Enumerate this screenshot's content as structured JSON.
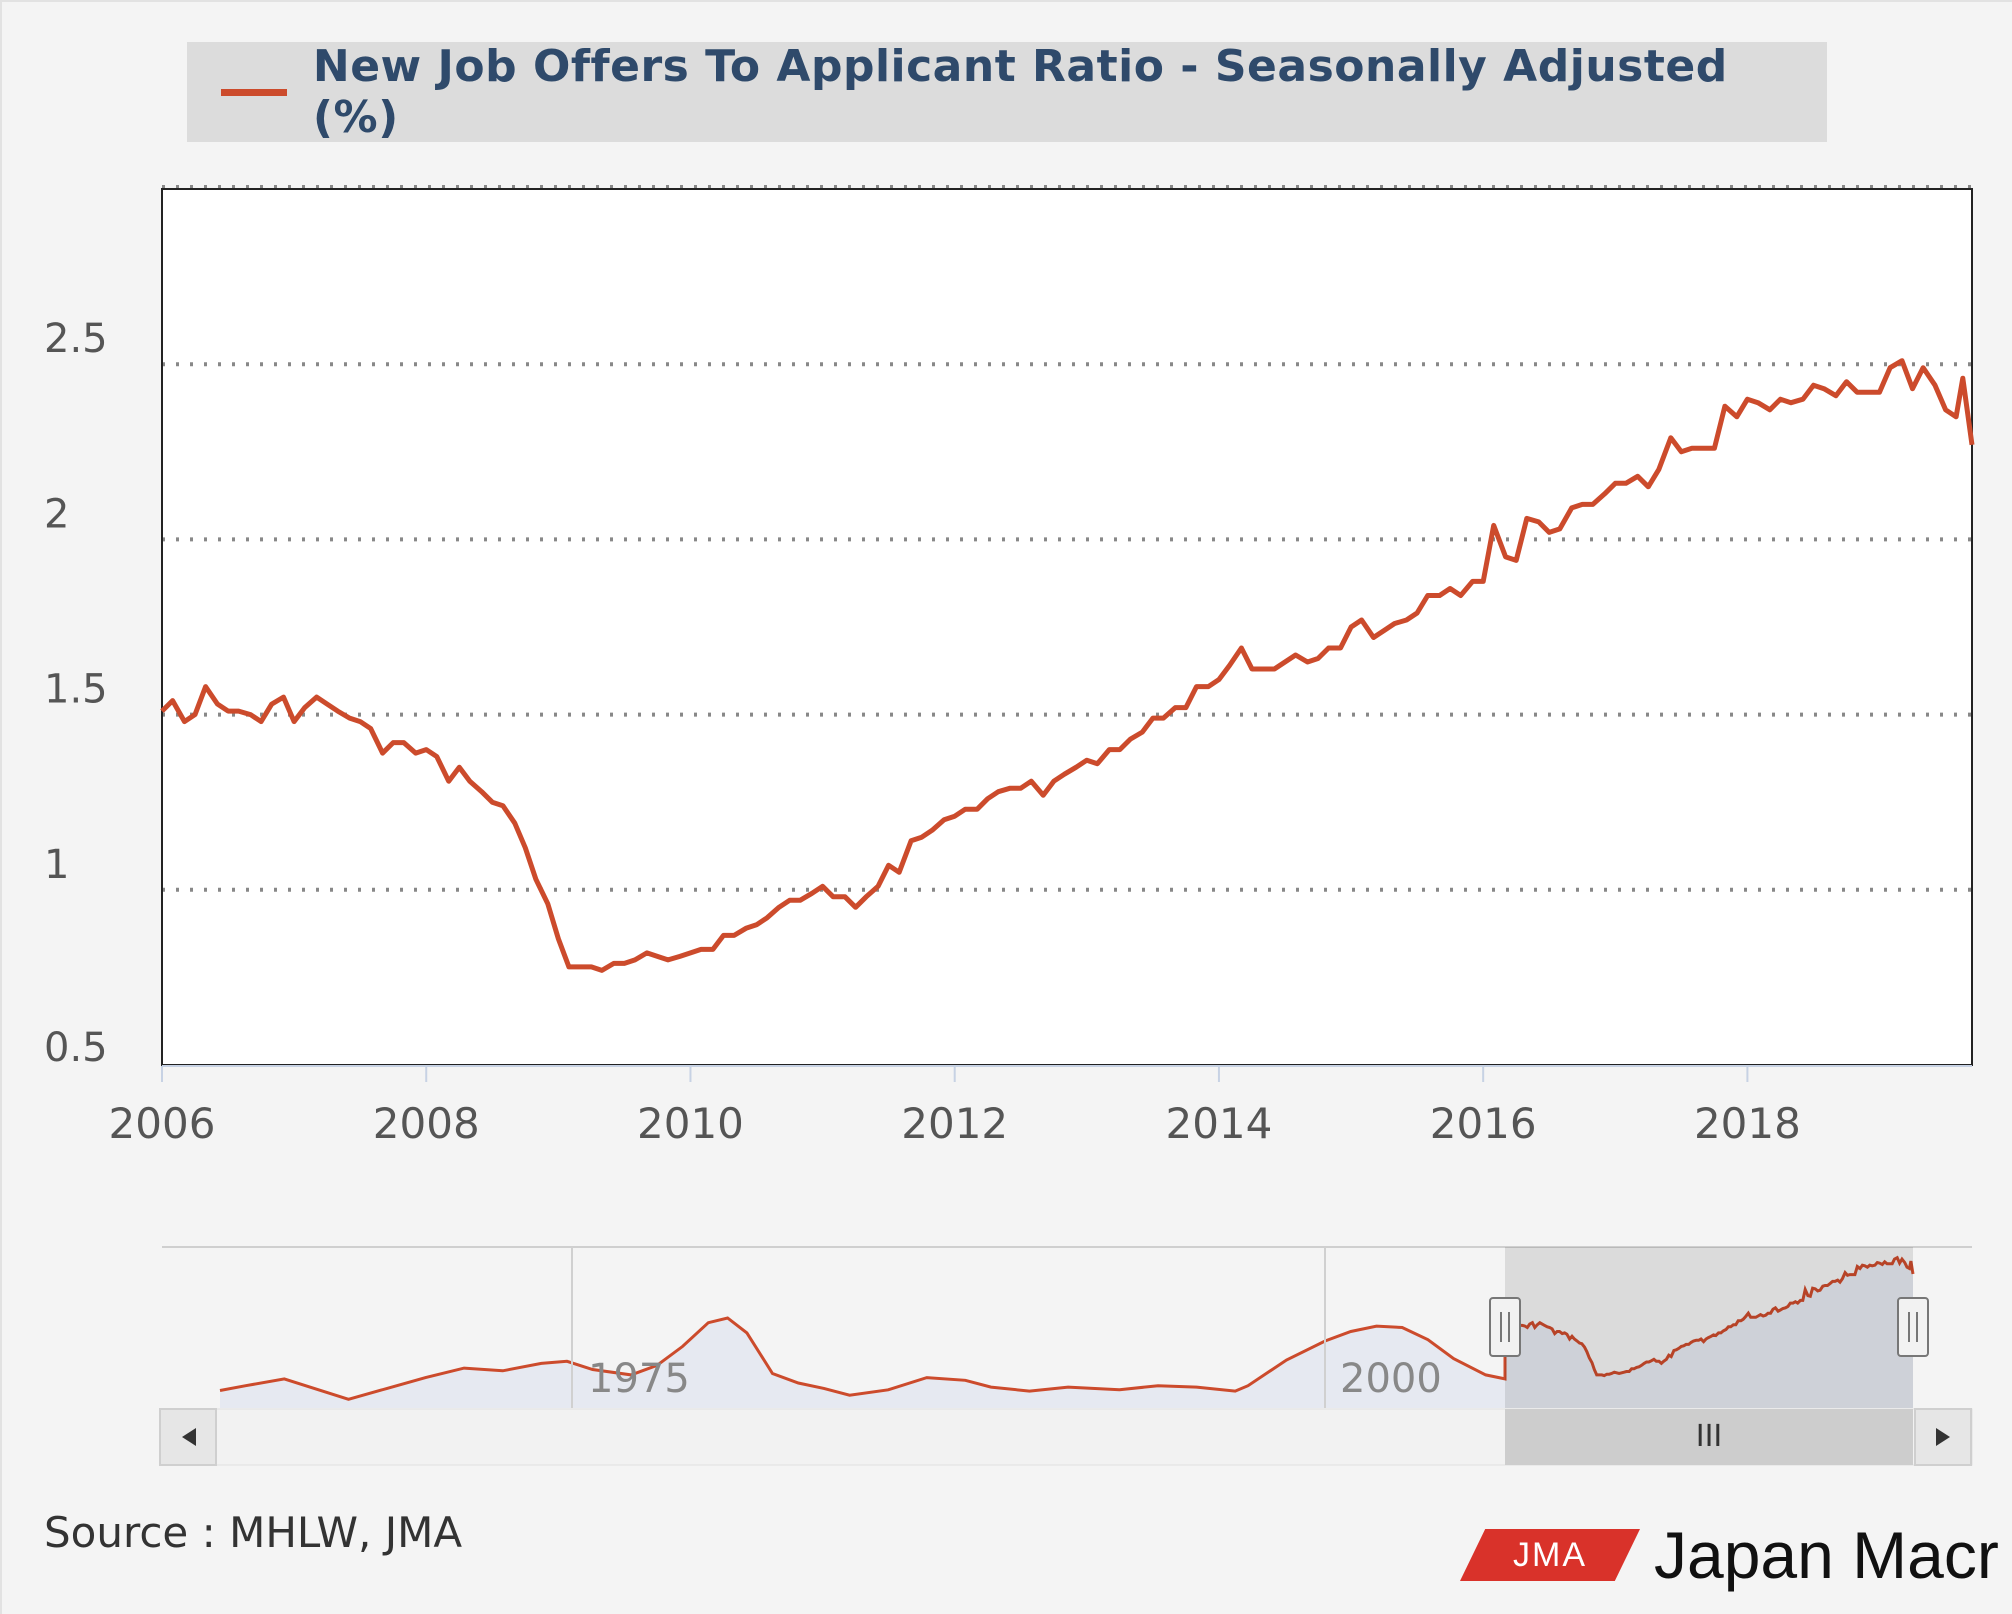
{
  "legend": {
    "label": "New Job Offers To Applicant Ratio - Seasonally Adjusted (%)",
    "color": "#cc4b2c"
  },
  "source": "Source : MHLW, JMA",
  "logo": {
    "badge": "JMA",
    "brand": "Japan Macr"
  },
  "navigator": {
    "labels": [
      "1975",
      "2000"
    ],
    "scroll_grip": "III"
  },
  "chart_data": {
    "type": "line",
    "title": "",
    "xlabel": "",
    "ylabel": "",
    "x_ticks": [
      "2006",
      "2008",
      "2010",
      "2012",
      "2014",
      "2016",
      "2018"
    ],
    "y_ticks": [
      "0.5",
      "1",
      "1.5",
      "2",
      "2.5"
    ],
    "xlim": [
      2006.0,
      2019.7
    ],
    "ylim": [
      0.5,
      3.0
    ],
    "grid": "horizontal dotted",
    "legend_position": "top",
    "series": [
      {
        "name": "New Job Offers To Applicant Ratio - Seasonally Adjusted (%)",
        "color": "#cc4b2c",
        "points": [
          [
            2006.0,
            1.51
          ],
          [
            2006.08,
            1.54
          ],
          [
            2006.17,
            1.48
          ],
          [
            2006.25,
            1.5
          ],
          [
            2006.33,
            1.58
          ],
          [
            2006.42,
            1.53
          ],
          [
            2006.5,
            1.51
          ],
          [
            2006.58,
            1.51
          ],
          [
            2006.67,
            1.5
          ],
          [
            2006.75,
            1.48
          ],
          [
            2006.83,
            1.53
          ],
          [
            2006.92,
            1.55
          ],
          [
            2007.0,
            1.48
          ],
          [
            2007.08,
            1.52
          ],
          [
            2007.17,
            1.55
          ],
          [
            2007.25,
            1.53
          ],
          [
            2007.33,
            1.51
          ],
          [
            2007.42,
            1.49
          ],
          [
            2007.5,
            1.48
          ],
          [
            2007.58,
            1.46
          ],
          [
            2007.67,
            1.39
          ],
          [
            2007.75,
            1.42
          ],
          [
            2007.83,
            1.42
          ],
          [
            2007.92,
            1.39
          ],
          [
            2008.0,
            1.4
          ],
          [
            2008.08,
            1.38
          ],
          [
            2008.17,
            1.31
          ],
          [
            2008.25,
            1.35
          ],
          [
            2008.33,
            1.31
          ],
          [
            2008.42,
            1.28
          ],
          [
            2008.5,
            1.25
          ],
          [
            2008.58,
            1.24
          ],
          [
            2008.67,
            1.19
          ],
          [
            2008.75,
            1.12
          ],
          [
            2008.83,
            1.03
          ],
          [
            2008.92,
            0.96
          ],
          [
            2009.0,
            0.86
          ],
          [
            2009.08,
            0.78
          ],
          [
            2009.17,
            0.78
          ],
          [
            2009.25,
            0.78
          ],
          [
            2009.33,
            0.77
          ],
          [
            2009.42,
            0.79
          ],
          [
            2009.5,
            0.79
          ],
          [
            2009.58,
            0.8
          ],
          [
            2009.67,
            0.82
          ],
          [
            2009.75,
            0.81
          ],
          [
            2009.83,
            0.8
          ],
          [
            2009.92,
            0.81
          ],
          [
            2010.0,
            0.82
          ],
          [
            2010.08,
            0.83
          ],
          [
            2010.17,
            0.83
          ],
          [
            2010.25,
            0.87
          ],
          [
            2010.33,
            0.87
          ],
          [
            2010.42,
            0.89
          ],
          [
            2010.5,
            0.9
          ],
          [
            2010.58,
            0.92
          ],
          [
            2010.67,
            0.95
          ],
          [
            2010.75,
            0.97
          ],
          [
            2010.83,
            0.97
          ],
          [
            2010.92,
            0.99
          ],
          [
            2011.0,
            1.01
          ],
          [
            2011.08,
            0.98
          ],
          [
            2011.17,
            0.98
          ],
          [
            2011.25,
            0.95
          ],
          [
            2011.33,
            0.98
          ],
          [
            2011.42,
            1.01
          ],
          [
            2011.5,
            1.07
          ],
          [
            2011.58,
            1.05
          ],
          [
            2011.67,
            1.14
          ],
          [
            2011.75,
            1.15
          ],
          [
            2011.83,
            1.17
          ],
          [
            2011.92,
            1.2
          ],
          [
            2012.0,
            1.21
          ],
          [
            2012.08,
            1.23
          ],
          [
            2012.17,
            1.23
          ],
          [
            2012.25,
            1.26
          ],
          [
            2012.33,
            1.28
          ],
          [
            2012.42,
            1.29
          ],
          [
            2012.5,
            1.29
          ],
          [
            2012.58,
            1.31
          ],
          [
            2012.67,
            1.27
          ],
          [
            2012.75,
            1.31
          ],
          [
            2012.83,
            1.33
          ],
          [
            2012.92,
            1.35
          ],
          [
            2013.0,
            1.37
          ],
          [
            2013.08,
            1.36
          ],
          [
            2013.17,
            1.4
          ],
          [
            2013.25,
            1.4
          ],
          [
            2013.33,
            1.43
          ],
          [
            2013.42,
            1.45
          ],
          [
            2013.5,
            1.49
          ],
          [
            2013.58,
            1.49
          ],
          [
            2013.67,
            1.52
          ],
          [
            2013.75,
            1.52
          ],
          [
            2013.83,
            1.58
          ],
          [
            2013.92,
            1.58
          ],
          [
            2014.0,
            1.6
          ],
          [
            2014.08,
            1.64
          ],
          [
            2014.17,
            1.69
          ],
          [
            2014.25,
            1.63
          ],
          [
            2014.33,
            1.63
          ],
          [
            2014.42,
            1.63
          ],
          [
            2014.5,
            1.65
          ],
          [
            2014.58,
            1.67
          ],
          [
            2014.67,
            1.65
          ],
          [
            2014.75,
            1.66
          ],
          [
            2014.83,
            1.69
          ],
          [
            2014.92,
            1.69
          ],
          [
            2015.0,
            1.75
          ],
          [
            2015.08,
            1.77
          ],
          [
            2015.17,
            1.72
          ],
          [
            2015.25,
            1.74
          ],
          [
            2015.33,
            1.76
          ],
          [
            2015.42,
            1.77
          ],
          [
            2015.5,
            1.79
          ],
          [
            2015.58,
            1.84
          ],
          [
            2015.67,
            1.84
          ],
          [
            2015.75,
            1.86
          ],
          [
            2015.83,
            1.84
          ],
          [
            2015.92,
            1.88
          ],
          [
            2016.0,
            1.88
          ],
          [
            2016.08,
            2.04
          ],
          [
            2016.17,
            1.95
          ],
          [
            2016.25,
            1.94
          ],
          [
            2016.33,
            2.06
          ],
          [
            2016.42,
            2.05
          ],
          [
            2016.5,
            2.02
          ],
          [
            2016.58,
            2.03
          ],
          [
            2016.67,
            2.09
          ],
          [
            2016.75,
            2.1
          ],
          [
            2016.83,
            2.1
          ],
          [
            2016.92,
            2.13
          ],
          [
            2017.0,
            2.16
          ],
          [
            2017.08,
            2.16
          ],
          [
            2017.17,
            2.18
          ],
          [
            2017.25,
            2.15
          ],
          [
            2017.33,
            2.2
          ],
          [
            2017.42,
            2.29
          ],
          [
            2017.5,
            2.25
          ],
          [
            2017.58,
            2.26
          ],
          [
            2017.67,
            2.26
          ],
          [
            2017.75,
            2.26
          ],
          [
            2017.83,
            2.38
          ],
          [
            2017.92,
            2.35
          ],
          [
            2018.0,
            2.4
          ],
          [
            2018.08,
            2.39
          ],
          [
            2018.17,
            2.37
          ],
          [
            2018.25,
            2.4
          ],
          [
            2018.33,
            2.39
          ],
          [
            2018.42,
            2.4
          ],
          [
            2018.5,
            2.44
          ],
          [
            2018.58,
            2.43
          ],
          [
            2018.67,
            2.41
          ],
          [
            2018.75,
            2.45
          ],
          [
            2018.83,
            2.42
          ],
          [
            2018.92,
            2.42
          ],
          [
            2019.0,
            2.42
          ],
          [
            2019.08,
            2.49
          ],
          [
            2019.17,
            2.51
          ],
          [
            2019.25,
            2.43
          ],
          [
            2019.33,
            2.49
          ],
          [
            2019.42,
            2.44
          ],
          [
            2019.5,
            2.37
          ],
          [
            2019.58,
            2.35
          ],
          [
            2019.63,
            2.46
          ],
          [
            2019.7,
            2.27
          ]
        ]
      }
    ]
  }
}
